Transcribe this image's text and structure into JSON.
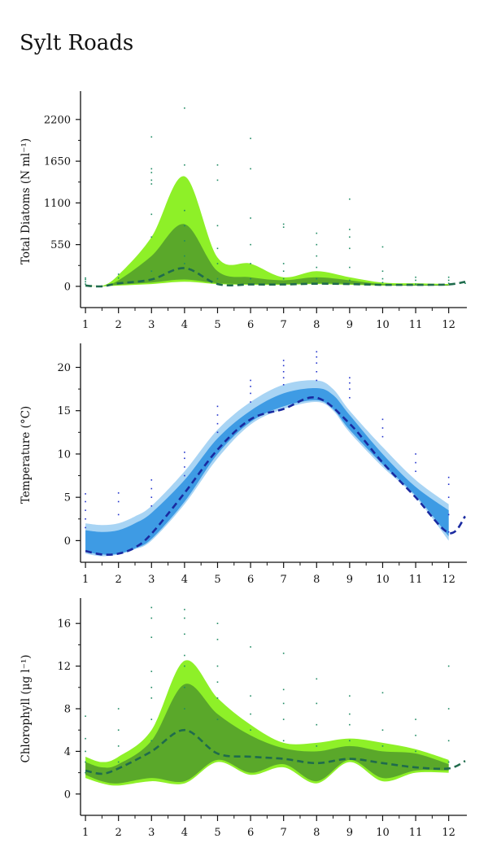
{
  "page_title": "Sylt Roads",
  "colors": {
    "diatoms_outer": "#8ef028",
    "diatoms_inner": "#5aa82a",
    "temp_outer": "#a8d4f4",
    "temp_inner": "#3e9be4",
    "chl_outer": "#8ef028",
    "chl_inner": "#5aa82a",
    "green_median": "#1f6b4c",
    "blue_median": "#1a2aa0",
    "green_dots": "#1e8a62",
    "blue_dots": "#2233cc"
  },
  "chart_data": [
    {
      "type": "area",
      "ylabel": "Total Diatoms (N ml⁻¹)",
      "xticks": [
        "1",
        "2",
        "3",
        "4",
        "5",
        "6",
        "7",
        "8",
        "9",
        "10",
        "11",
        "12"
      ],
      "yticks": [
        "0",
        "550",
        "1100",
        "1650",
        "2200"
      ],
      "xlim": [
        0.85,
        12.55
      ],
      "ylim": [
        -280,
        2520
      ],
      "series": [
        {
          "x": [
            1,
            1.5,
            2,
            3,
            4,
            5,
            6,
            7,
            8,
            9,
            10,
            11,
            12
          ],
          "outer_low": [
            0,
            0,
            10,
            30,
            60,
            30,
            20,
            20,
            30,
            20,
            10,
            10,
            10
          ],
          "outer_high": [
            20,
            5,
            150,
            650,
            1450,
            380,
            300,
            120,
            200,
            120,
            50,
            40,
            30
          ],
          "inner_low": [
            5,
            2,
            20,
            50,
            90,
            40,
            30,
            30,
            40,
            30,
            15,
            10,
            10
          ],
          "inner_high": [
            15,
            3,
            80,
            400,
            820,
            200,
            120,
            80,
            120,
            80,
            30,
            20,
            20
          ]
        }
      ],
      "median": {
        "x": [
          1,
          1.5,
          2,
          3,
          4,
          5,
          6,
          7,
          8,
          9,
          10,
          11,
          12,
          12.5
        ],
        "y": [
          10,
          0,
          40,
          90,
          240,
          30,
          25,
          25,
          35,
          30,
          20,
          20,
          25,
          60
        ]
      },
      "points": {
        "x": [
          1,
          1,
          1,
          1,
          2,
          2,
          2,
          3,
          3,
          3,
          3,
          3,
          3,
          3,
          3,
          4,
          4,
          4,
          4,
          4,
          4,
          4,
          5,
          5,
          5,
          5,
          5,
          5,
          6,
          6,
          6,
          6,
          6,
          6,
          7,
          7,
          7,
          7,
          7,
          8,
          8,
          8,
          8,
          8,
          9,
          9,
          9,
          9,
          9,
          9,
          10,
          10,
          10,
          10,
          11,
          11,
          11,
          12,
          12,
          12,
          12.5
        ],
        "y": [
          30,
          60,
          90,
          110,
          40,
          110,
          160,
          200,
          650,
          950,
          1350,
          1400,
          1500,
          1550,
          1970,
          300,
          400,
          600,
          800,
          1000,
          1600,
          2350,
          100,
          300,
          500,
          800,
          1400,
          1600,
          100,
          300,
          550,
          900,
          1550,
          1950,
          100,
          200,
          300,
          780,
          820,
          100,
          250,
          400,
          550,
          700,
          80,
          250,
          500,
          650,
          750,
          1150,
          50,
          100,
          200,
          520,
          30,
          80,
          120,
          40,
          80,
          120,
          40
        ]
      }
    },
    {
      "type": "area",
      "ylabel": "Temperature (°C)",
      "xticks": [
        "1",
        "2",
        "3",
        "4",
        "5",
        "6",
        "7",
        "8",
        "9",
        "10",
        "11",
        "12"
      ],
      "yticks": [
        "0",
        "5",
        "10",
        "15",
        "20"
      ],
      "xlim": [
        0.85,
        12.55
      ],
      "ylim": [
        -2.5,
        22.3
      ],
      "series": [
        {
          "x": [
            1,
            1.5,
            2,
            2.5,
            3,
            4,
            5,
            6,
            7,
            8,
            8.5,
            9,
            10,
            11,
            12
          ],
          "outer_low": [
            -1.5,
            -1.8,
            -1.6,
            -1.0,
            0.0,
            4.2,
            9.5,
            13.4,
            15.2,
            16.0,
            15.0,
            12.5,
            8.5,
            5.0,
            0.0
          ],
          "outer_high": [
            2.0,
            1.8,
            2.0,
            2.8,
            4.0,
            8.0,
            12.8,
            16.0,
            18.0,
            18.5,
            17.5,
            15.0,
            10.8,
            7.0,
            4.2
          ],
          "inner_low": [
            -1.3,
            -1.6,
            -1.5,
            -0.9,
            0.2,
            4.5,
            10.0,
            13.7,
            15.5,
            16.2,
            15.2,
            12.8,
            8.8,
            5.2,
            0.5
          ],
          "inner_high": [
            1.2,
            1.0,
            1.2,
            2.0,
            3.2,
            7.0,
            11.8,
            15.0,
            17.0,
            17.6,
            16.8,
            14.5,
            10.0,
            6.2,
            3.5
          ]
        }
      ],
      "median": {
        "x": [
          1,
          1.5,
          2,
          2.5,
          3,
          4,
          5,
          6,
          7,
          8,
          9,
          10,
          11,
          12,
          12.5
        ],
        "y": [
          -1.2,
          -1.6,
          -1.5,
          -0.8,
          0.8,
          5.5,
          10.5,
          14.0,
          15.2,
          16.5,
          13.5,
          9.0,
          5.0,
          0.9,
          2.8
        ]
      },
      "points": {
        "x": [
          1,
          1,
          1,
          1,
          1,
          2,
          2,
          2,
          3,
          3,
          3,
          3,
          4,
          4,
          4,
          4,
          5,
          5,
          5,
          5,
          6,
          6,
          6,
          6,
          7,
          7,
          7,
          7,
          7,
          8,
          8,
          8,
          8,
          8,
          9,
          9,
          9,
          9,
          10,
          10,
          10,
          11,
          11,
          11,
          12,
          12,
          12,
          12,
          12
        ],
        "y": [
          1.5,
          2.5,
          3.5,
          4.5,
          5.4,
          3.0,
          4.5,
          5.5,
          4.0,
          5.0,
          6.0,
          7.0,
          7.5,
          8.5,
          9.5,
          10.2,
          12.5,
          13.5,
          14.5,
          15.5,
          16.0,
          17.0,
          17.8,
          18.5,
          18.0,
          18.8,
          19.5,
          20.2,
          20.8,
          18.5,
          19.5,
          20.5,
          21.2,
          21.8,
          16.5,
          17.5,
          18.2,
          18.8,
          12.0,
          13.0,
          14.0,
          8.0,
          9.0,
          10.0,
          1.0,
          3.0,
          5.0,
          6.5,
          7.3
        ]
      }
    },
    {
      "type": "area",
      "ylabel": "Chlorophyll (μg l⁻¹)",
      "xticks": [
        "1",
        "2",
        "3",
        "4",
        "5",
        "6",
        "7",
        "8",
        "9",
        "10",
        "11",
        "12"
      ],
      "yticks": [
        "0",
        "4",
        "8",
        "12",
        "16"
      ],
      "xlim": [
        0.85,
        12.55
      ],
      "ylim": [
        -2.0,
        18.0
      ],
      "series": [
        {
          "x": [
            1,
            1.5,
            2,
            3,
            4,
            5,
            6,
            7,
            8,
            9,
            10,
            11,
            12
          ],
          "outer_low": [
            1.5,
            1.0,
            0.8,
            1.2,
            1.0,
            3.0,
            1.8,
            2.5,
            1.0,
            3.0,
            1.2,
            2.0,
            2.0
          ],
          "outer_high": [
            3.5,
            3.0,
            3.5,
            6.0,
            12.5,
            9.0,
            6.5,
            4.8,
            4.8,
            5.2,
            4.8,
            4.2,
            3.2
          ],
          "inner_low": [
            1.8,
            1.2,
            1.0,
            1.5,
            1.2,
            3.2,
            2.0,
            2.8,
            1.2,
            3.2,
            1.5,
            2.2,
            2.2
          ],
          "inner_high": [
            3.0,
            2.5,
            2.8,
            5.0,
            10.3,
            7.5,
            5.5,
            4.3,
            4.0,
            4.5,
            4.0,
            3.8,
            2.8
          ]
        }
      ],
      "median": {
        "x": [
          1,
          1.5,
          2,
          3,
          4,
          5,
          6,
          7,
          8,
          9,
          10,
          11,
          12,
          12.5
        ],
        "y": [
          2.2,
          1.9,
          2.4,
          4.0,
          6.0,
          3.8,
          3.5,
          3.3,
          2.9,
          3.3,
          2.9,
          2.5,
          2.4,
          3.1
        ]
      },
      "points": {
        "x": [
          1,
          1,
          1,
          1,
          1,
          2,
          2,
          2,
          2,
          3,
          3,
          3,
          3,
          3,
          3,
          3,
          3,
          4,
          4,
          4,
          4,
          4,
          4,
          4,
          4,
          5,
          5,
          5,
          5,
          5,
          5,
          6,
          6,
          6,
          6,
          7,
          7,
          7,
          7,
          7,
          8,
          8,
          8,
          8,
          9,
          9,
          9,
          9,
          10,
          10,
          10,
          11,
          11,
          11,
          12,
          12,
          12,
          12
        ],
        "y": [
          2.0,
          3.0,
          4.0,
          5.2,
          7.3,
          3.0,
          4.5,
          6.0,
          8.0,
          5.0,
          7.0,
          9.0,
          10.0,
          11.5,
          14.7,
          16.5,
          17.5,
          6.0,
          8.0,
          10.0,
          12.0,
          13.0,
          15.0,
          16.5,
          17.3,
          7.0,
          9.0,
          10.5,
          12.0,
          14.5,
          16.0,
          6.0,
          7.5,
          9.2,
          13.8,
          5.0,
          7.0,
          8.5,
          9.8,
          13.2,
          4.5,
          6.5,
          8.5,
          10.8,
          5.0,
          6.5,
          7.5,
          9.2,
          4.5,
          6.0,
          9.5,
          4.0,
          5.5,
          7.0,
          3.0,
          5.0,
          8.0,
          12.0
        ]
      }
    }
  ]
}
